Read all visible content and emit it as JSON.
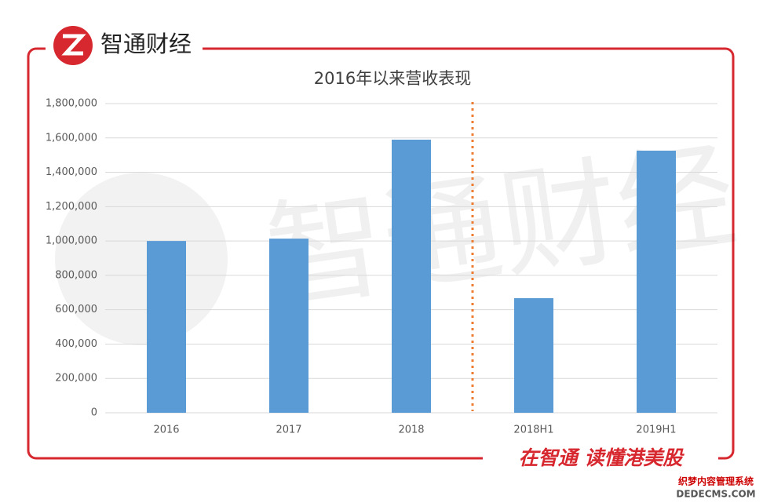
{
  "brand": {
    "logo_text": "智通财经",
    "slogan": "在智通 读懂港美股",
    "watermark": "智通财经",
    "site_mark": "织梦内容管理系统",
    "site_url": "DEDECMS.COM"
  },
  "chart_data": {
    "type": "bar",
    "title": "2016年以来营收表现",
    "categories": [
      "2016",
      "2017",
      "2018",
      "2018H1",
      "2019H1"
    ],
    "values": [
      1000000,
      1014000,
      1590000,
      667000,
      1526000
    ],
    "color": "#5b9bd5",
    "ylim": [
      0,
      1800000
    ],
    "yticks": [
      0,
      {
        "value": 200000,
        "label": "200,000"
      },
      {
        "value": 400000,
        "label": "400,000"
      },
      {
        "value": 600000,
        "label": "600,000"
      },
      {
        "value": 800000,
        "label": "800,000"
      },
      {
        "value": 1000000,
        "label": "1,000,000"
      },
      {
        "value": 1200000,
        "label": "1,200,000"
      },
      {
        "value": 1400000,
        "label": "1,400,000"
      },
      {
        "value": 1600000,
        "label": "1,600,000"
      },
      {
        "value": 1800000,
        "label": "1,800,000"
      }
    ],
    "grid": true
  }
}
